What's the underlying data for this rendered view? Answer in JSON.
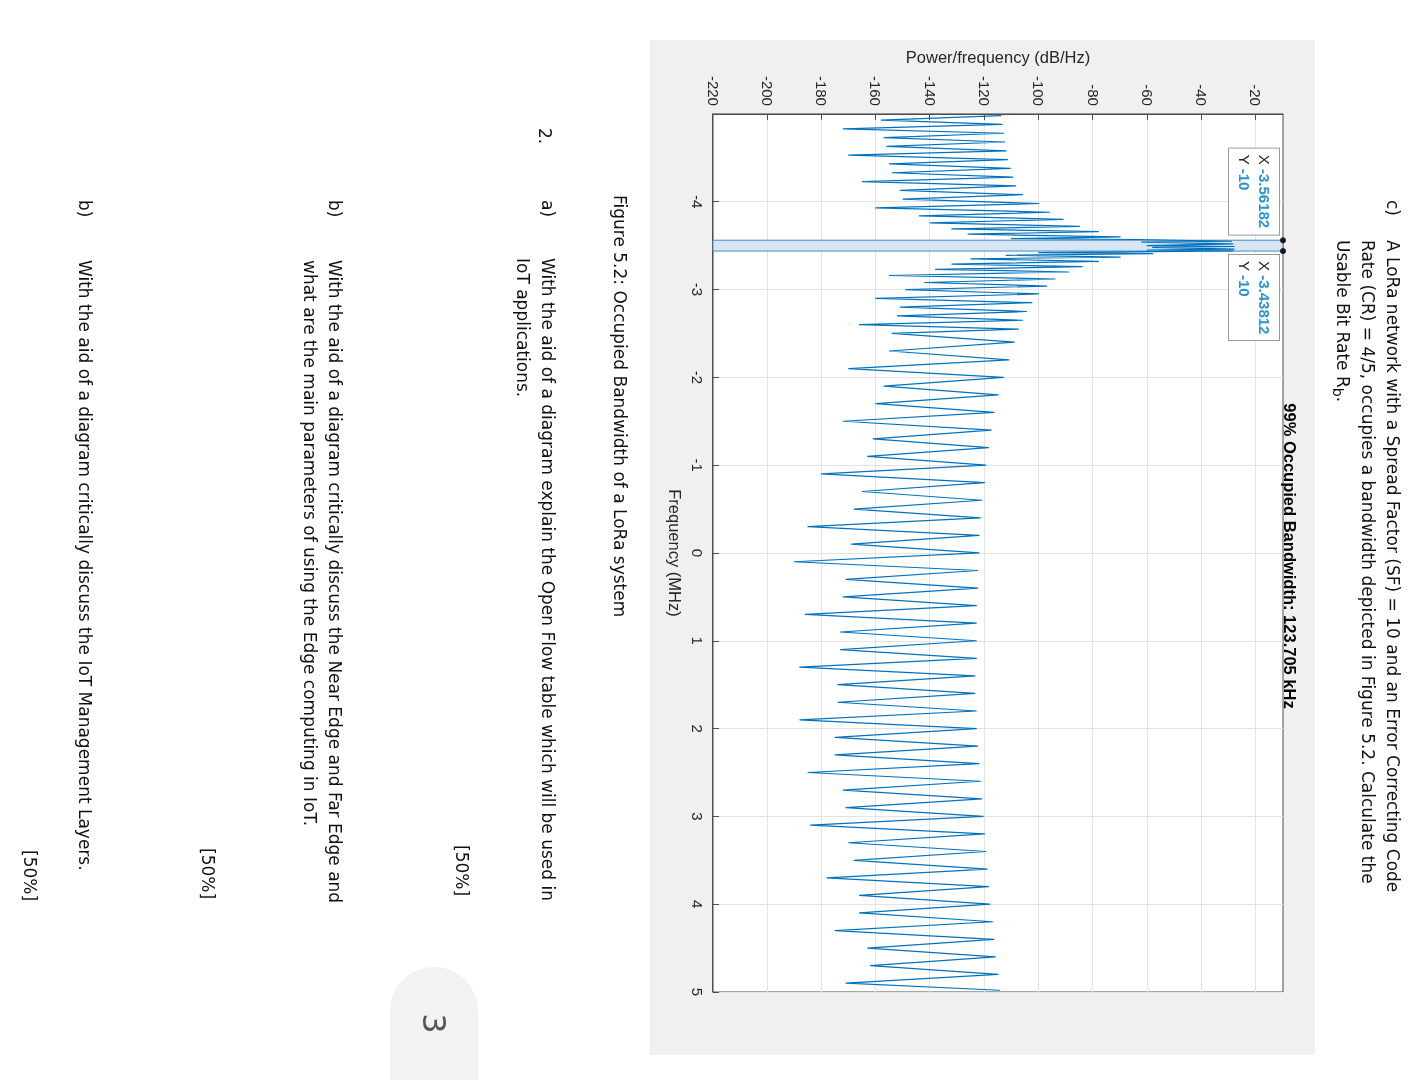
{
  "chart_data": {
    "type": "line",
    "title": "99% Occupied Bandwidth: 123.705 kHz",
    "xlabel": "Power/frequency (dB/Hz)",
    "ylabel": "Frequency (MHz)",
    "x": [
      -114,
      -158,
      -113.5,
      -172,
      -113,
      -157,
      -112.5,
      -156,
      -112,
      -170,
      -111.5,
      -155,
      -110.5,
      -154,
      -109.5,
      -165,
      -108.5,
      -151,
      -106,
      -150,
      -100,
      -160,
      -96,
      -144,
      -91,
      -140,
      -85,
      -132,
      -78,
      -126,
      -70,
      -110,
      -64,
      -29,
      -62,
      -28.5,
      -60,
      -28,
      -58,
      -28,
      -60,
      -28.5,
      -100,
      -58,
      -112,
      -70,
      -125,
      -78,
      -132,
      -84,
      -138,
      -89,
      -155,
      -94,
      -142,
      -97,
      -149,
      -100,
      -160,
      -102.5,
      -151,
      -104.5,
      -152,
      -106,
      -166,
      -107.5,
      -154,
      -109,
      -155,
      -111,
      -170,
      -113,
      -157,
      -115,
      -160,
      -116.5,
      -172,
      -117.5,
      -161,
      -118.5,
      -163,
      -119.5,
      -180,
      -120,
      -165,
      -121,
      -168,
      -121.5,
      -185,
      -122,
      -169,
      -122,
      -190,
      -122.5,
      -171,
      -122.5,
      -172,
      -123,
      -186,
      -123,
      -173,
      -123,
      -173,
      -123,
      -188,
      -123.5,
      -174,
      -123.5,
      -174,
      -123,
      -188,
      -123,
      -175,
      -122.5,
      -175,
      -122,
      -185,
      -121.5,
      -172,
      -121,
      -171,
      -120.5,
      -184,
      -120,
      -170,
      -119.5,
      -168,
      -119,
      -178,
      -118.5,
      -166,
      -118,
      -166,
      -117,
      -175,
      -116.5,
      -163,
      -116,
      -162,
      -115,
      -171,
      -114.5
    ],
    "values": [
      -4.98,
      -4.93,
      -4.88,
      -4.83,
      -4.78,
      -4.73,
      -4.68,
      -4.63,
      -4.58,
      -4.53,
      -4.48,
      -4.43,
      -4.38,
      -4.33,
      -4.28,
      -4.23,
      -4.18,
      -4.13,
      -4.08,
      -4.03,
      -3.98,
      -3.93,
      -3.88,
      -3.84,
      -3.8,
      -3.76,
      -3.72,
      -3.69,
      -3.66,
      -3.63,
      -3.6,
      -3.58,
      -3.57,
      -3.55,
      -3.54,
      -3.52,
      -3.5,
      -3.49,
      -3.48,
      -3.46,
      -3.45,
      -3.44,
      -3.42,
      -3.41,
      -3.39,
      -3.37,
      -3.35,
      -3.32,
      -3.29,
      -3.26,
      -3.23,
      -3.2,
      -3.16,
      -3.12,
      -3.08,
      -3.04,
      -3,
      -2.95,
      -2.9,
      -2.85,
      -2.8,
      -2.75,
      -2.7,
      -2.65,
      -2.6,
      -2.55,
      -2.5,
      -2.4,
      -2.3,
      -2.2,
      -2.1,
      -2,
      -1.9,
      -1.8,
      -1.7,
      -1.6,
      -1.5,
      -1.4,
      -1.3,
      -1.2,
      -1.1,
      -1,
      -0.9,
      -0.8,
      -0.7,
      -0.6,
      -0.5,
      -0.4,
      -0.3,
      -0.2,
      -0.1,
      0,
      0.1,
      0.2,
      0.3,
      0.4,
      0.5,
      0.6,
      0.7,
      0.8,
      0.9,
      1,
      1.1,
      1.2,
      1.3,
      1.4,
      1.5,
      1.6,
      1.7,
      1.8,
      1.9,
      2,
      2.1,
      2.2,
      2.3,
      2.4,
      2.5,
      2.6,
      2.7,
      2.8,
      2.9,
      3,
      3.1,
      3.2,
      3.3,
      3.4,
      3.5,
      3.6,
      3.7,
      3.8,
      3.9,
      4,
      4.1,
      4.2,
      4.3,
      4.4,
      4.5,
      4.6,
      4.7,
      4.8,
      4.9,
      4.98
    ],
    "color": "#0072bd",
    "xlim": [
      -220,
      -10
    ],
    "xticks": [
      -220,
      -200,
      -180,
      -160,
      -140,
      -120,
      -100,
      -80,
      -60,
      -40,
      -20
    ],
    "ylim": [
      5,
      -5
    ],
    "yticks": [
      -4,
      -3,
      -2,
      -1,
      0,
      1,
      2,
      3,
      4,
      5
    ],
    "grid": true,
    "bands": [
      {
        "axis": "y",
        "from": -3.56182,
        "to": -3.43812,
        "color": "#d6e6f5"
      }
    ],
    "annotations": [
      "c)",
      "A LoRa network with a Spread Factor (SF) = 10 and an Error Correcting Code\nRate (CR) = 4/5, occupies a bandwidth depicted in Figure 5.2. Calculate the\nUsable Bit Rate R$_{b}$.",
      {
        "text": "X -3.56182\nY -10",
        "x": -10,
        "y": -3.56182
      },
      {
        "text": "X -3.43812\nY -10",
        "x": -10,
        "y": -3.43812
      },
      "Figure 5.2: Occupied Bandwidth of a LoRa system",
      "2.",
      "a)",
      "With the aid of a diagram explain the Open Flow table which will be used in\nIoT applications.",
      "[50%]",
      "3",
      "b)",
      "With the aid of a diagram critically discuss the Near Edge and Far Edge and\nwhat are the main parameters of using the Edge computing in IoT.",
      "[50%]",
      "b)",
      "With the aid of a diagram critically discuss the IoT Management Layers.",
      "[50%]"
    ]
  }
}
